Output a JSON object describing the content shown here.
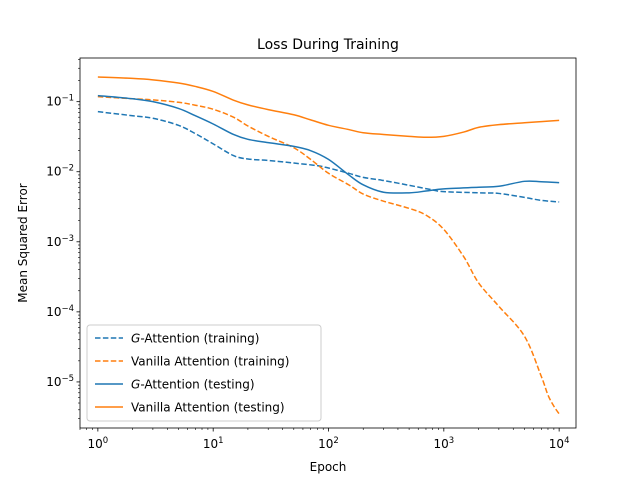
{
  "chart_data": {
    "type": "line",
    "title": "Loss During Training",
    "xlabel": "Epoch",
    "ylabel": "Mean Squared Error",
    "xscale": "log",
    "yscale": "log",
    "xlim": [
      0.7,
      14000
    ],
    "ylim": [
      2.2e-06,
      0.42
    ],
    "grid": false,
    "legend_position": "lower-left",
    "x_ticks": [
      {
        "value": 1,
        "base": "10",
        "exp": "0"
      },
      {
        "value": 10,
        "base": "10",
        "exp": "1"
      },
      {
        "value": 100,
        "base": "10",
        "exp": "2"
      },
      {
        "value": 1000,
        "base": "10",
        "exp": "3"
      },
      {
        "value": 10000,
        "base": "10",
        "exp": "4"
      }
    ],
    "y_ticks": [
      {
        "value": 1e-05,
        "base": "10",
        "exp": "−5"
      },
      {
        "value": 0.0001,
        "base": "10",
        "exp": "−4"
      },
      {
        "value": 0.001,
        "base": "10",
        "exp": "−3"
      },
      {
        "value": 0.01,
        "base": "10",
        "exp": "−2"
      },
      {
        "value": 0.1,
        "base": "10",
        "exp": "−1"
      }
    ],
    "series": [
      {
        "name": "G-Attention (training)",
        "name_italic": "G",
        "name_rest": "-Attention (training)",
        "color": "#1f77b4",
        "dash": "dashed",
        "x": [
          1,
          2,
          3,
          5,
          7,
          10,
          15,
          20,
          30,
          50,
          80,
          100,
          150,
          200,
          300,
          500,
          800,
          1000,
          2000,
          3000,
          5000,
          7000,
          10000
        ],
        "y": [
          0.072,
          0.063,
          0.058,
          0.046,
          0.035,
          0.025,
          0.017,
          0.0152,
          0.0145,
          0.0133,
          0.0122,
          0.0113,
          0.0095,
          0.0083,
          0.0075,
          0.0064,
          0.0055,
          0.0052,
          0.005,
          0.0049,
          0.0043,
          0.0039,
          0.0037
        ]
      },
      {
        "name": "Vanilla Attention (training)",
        "color": "#ff7f0e",
        "dash": "dashed",
        "x": [
          1,
          2,
          3,
          5,
          7,
          10,
          15,
          20,
          30,
          50,
          70,
          100,
          150,
          200,
          300,
          500,
          700,
          1000,
          1500,
          2000,
          3000,
          5000,
          7000,
          8000,
          9000,
          10000
        ],
        "y": [
          0.118,
          0.11,
          0.106,
          0.098,
          0.089,
          0.078,
          0.06,
          0.045,
          0.032,
          0.022,
          0.015,
          0.0095,
          0.0065,
          0.0048,
          0.0038,
          0.003,
          0.0024,
          0.0015,
          0.0006,
          0.00026,
          0.00012,
          4.5e-05,
          1.2e-05,
          6.5e-06,
          4.5e-06,
          3.5e-06
        ]
      },
      {
        "name": "G-Attention (testing)",
        "name_italic": "G",
        "name_rest": "-Attention (testing)",
        "color": "#1f77b4",
        "dash": "solid",
        "x": [
          1,
          2,
          3,
          5,
          7,
          10,
          15,
          20,
          30,
          50,
          70,
          100,
          150,
          200,
          300,
          500,
          700,
          1000,
          2000,
          3000,
          5000,
          7000,
          10000
        ],
        "y": [
          0.122,
          0.11,
          0.1,
          0.08,
          0.063,
          0.048,
          0.034,
          0.029,
          0.026,
          0.023,
          0.02,
          0.015,
          0.009,
          0.0065,
          0.0051,
          0.005,
          0.0053,
          0.0057,
          0.006,
          0.0062,
          0.0073,
          0.0072,
          0.007
        ]
      },
      {
        "name": "Vanilla Attention (testing)",
        "color": "#ff7f0e",
        "dash": "solid",
        "x": [
          1,
          2,
          3,
          5,
          7,
          10,
          15,
          20,
          30,
          50,
          70,
          100,
          150,
          200,
          300,
          500,
          700,
          1000,
          1500,
          2000,
          3000,
          5000,
          7000,
          10000
        ],
        "y": [
          0.225,
          0.215,
          0.205,
          0.185,
          0.165,
          0.14,
          0.105,
          0.09,
          0.077,
          0.065,
          0.055,
          0.046,
          0.04,
          0.036,
          0.034,
          0.032,
          0.031,
          0.032,
          0.037,
          0.043,
          0.047,
          0.05,
          0.052,
          0.054
        ]
      }
    ]
  }
}
